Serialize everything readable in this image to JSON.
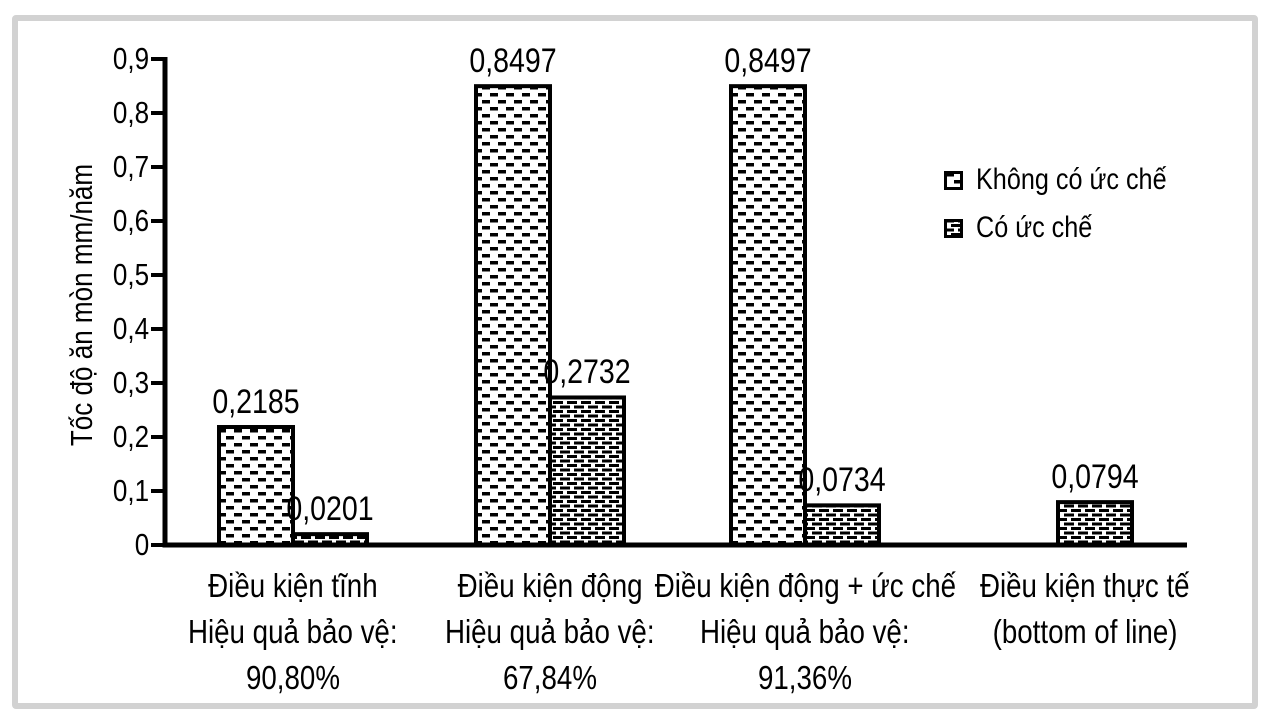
{
  "colors": {
    "ink": "#000000",
    "frame_border": "#d2d2d2",
    "background": "#ffffff"
  },
  "chart_data": {
    "type": "bar",
    "title": "",
    "ylabel": "Tốc độ ăn mòn mm/năm",
    "xlabel": "",
    "ylim": [
      0,
      0.9
    ],
    "grid": false,
    "legend_position": "right",
    "ytick_labels": [
      "0",
      "0,1",
      "0,2",
      "0,3",
      "0,4",
      "0,5",
      "0,6",
      "0,7",
      "0,8",
      "0,9"
    ],
    "categories": [
      {
        "lines": [
          "Điều kiện tĩnh",
          "Hiệu quả bảo vệ:",
          "90,80%"
        ]
      },
      {
        "lines": [
          "Điều kiện động",
          "Hiệu quả bảo vệ:",
          "67,84%"
        ]
      },
      {
        "lines": [
          "Điều kiện động + ức chế",
          "Hiệu quả bảo vệ:",
          "91,36%"
        ]
      },
      {
        "lines": [
          "Điều kiện thực tế",
          "(bottom of line)"
        ]
      }
    ],
    "series": [
      {
        "name": "Không có ức chế",
        "pattern": "sparse-dash",
        "values": [
          0.2185,
          0.8497,
          0.8497,
          null
        ],
        "value_labels": [
          "0,2185",
          "0,8497",
          "0,8497",
          null
        ]
      },
      {
        "name": "Có ức chế",
        "pattern": "dense-dash",
        "values": [
          0.0201,
          0.2732,
          0.0734,
          0.0794
        ],
        "value_labels": [
          "0,0201",
          "0,2732",
          "0,0734",
          "0,0794"
        ]
      }
    ]
  }
}
